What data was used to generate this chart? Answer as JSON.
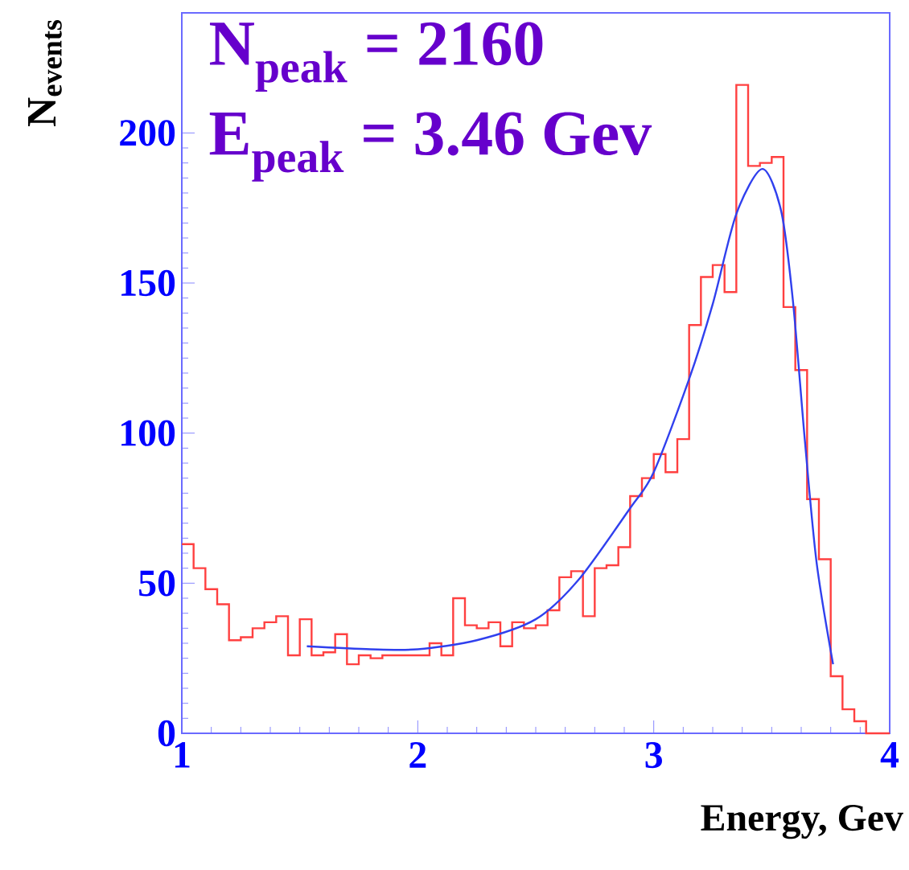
{
  "chart_data": {
    "type": "histogram",
    "xlabel": "Energy, Gev",
    "ylabel": "N$_{events}$",
    "annotations": [
      "N$_{peak}$ = 2160",
      "E$_{peak}$ = 3.46 Gev"
    ],
    "xlim": [
      1,
      4
    ],
    "ylim": [
      0,
      240
    ],
    "xticks": [
      1,
      2,
      3,
      4
    ],
    "yticks": [
      0,
      50,
      100,
      150,
      200
    ],
    "series": [
      {
        "color": "#ff4040",
        "bins": [
          1.0,
          1.05,
          1.1,
          1.15,
          1.2,
          1.25,
          1.3,
          1.35,
          1.4,
          1.45,
          1.5,
          1.55,
          1.6,
          1.65,
          1.7,
          1.75,
          1.8,
          1.85,
          1.9,
          1.95,
          2.0,
          2.05,
          2.1,
          2.15,
          2.2,
          2.25,
          2.3,
          2.35,
          2.4,
          2.45,
          2.5,
          2.55,
          2.6,
          2.65,
          2.7,
          2.75,
          2.8,
          2.85,
          2.9,
          2.95,
          3.0,
          3.05,
          3.1,
          3.15,
          3.2,
          3.25,
          3.3,
          3.35,
          3.4,
          3.45,
          3.5,
          3.55,
          3.6,
          3.65,
          3.7,
          3.75,
          3.8,
          3.85,
          3.9,
          3.95,
          4.0
        ],
        "values": [
          63,
          55,
          48,
          43,
          31,
          32,
          35,
          37,
          39,
          26,
          38,
          26,
          27,
          33,
          23,
          26,
          25,
          26,
          26,
          26,
          26,
          30,
          26,
          45,
          36,
          35,
          37,
          29,
          37,
          35,
          36,
          41,
          52,
          54,
          39,
          55,
          56,
          62,
          79,
          85,
          93,
          87,
          98,
          136,
          152,
          156,
          147,
          216,
          189,
          190,
          192,
          142,
          121,
          78,
          58,
          19,
          8,
          4,
          0,
          0
        ]
      },
      {
        "type": "line",
        "color": "#3040ee",
        "x": [
          1.53,
          1.8,
          2.0,
          2.25,
          2.5,
          2.68,
          2.9,
          3.0,
          3.15,
          3.25,
          3.35,
          3.46,
          3.54,
          3.59,
          3.64,
          3.69,
          3.76
        ],
        "values": [
          29,
          28,
          28,
          31,
          38,
          51,
          75,
          87,
          118,
          143,
          173,
          188,
          174,
          144,
          98,
          57,
          23
        ]
      }
    ]
  }
}
